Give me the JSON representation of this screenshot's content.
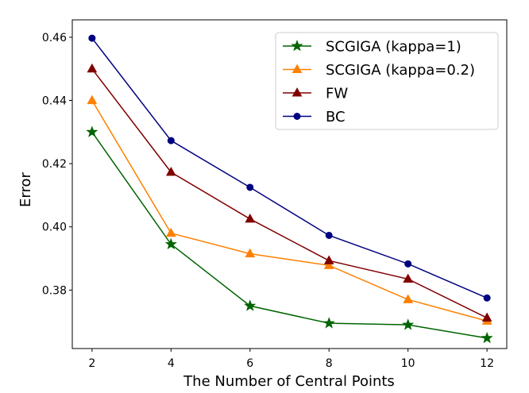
{
  "chart_data": {
    "type": "line",
    "title": "",
    "xlabel": "The Number of Central Points",
    "ylabel": "Error",
    "x": [
      2,
      4,
      6,
      8,
      10,
      12
    ],
    "xlim": [
      1.5,
      12.5
    ],
    "ylim": [
      0.3615,
      0.4655
    ],
    "xticks": [
      2,
      4,
      6,
      8,
      10,
      12
    ],
    "yticks": [
      0.38,
      0.4,
      0.42,
      0.44,
      0.46
    ],
    "ytick_labels": [
      "0.38",
      "0.40",
      "0.42",
      "0.44",
      "0.46"
    ],
    "legend_position": "top-right",
    "grid": false,
    "series": [
      {
        "name": "SCGIGA (kappa=1)",
        "color": "#006400",
        "marker": "star",
        "values": [
          0.43,
          0.3945,
          0.375,
          0.3695,
          0.369,
          0.3648
        ]
      },
      {
        "name": "SCGIGA (kappa=0.2)",
        "color": "#ff8000",
        "marker": "triangle",
        "values": [
          0.44,
          0.398,
          0.3915,
          0.3878,
          0.377,
          0.3702
        ]
      },
      {
        "name": "FW",
        "color": "#800000",
        "marker": "triangle",
        "values": [
          0.45,
          0.4173,
          0.4025,
          0.3893,
          0.3835,
          0.3712
        ]
      },
      {
        "name": "BC",
        "color": "#000080",
        "marker": "circle",
        "values": [
          0.4597,
          0.4273,
          0.4125,
          0.3973,
          0.3883,
          0.3775
        ]
      }
    ]
  }
}
